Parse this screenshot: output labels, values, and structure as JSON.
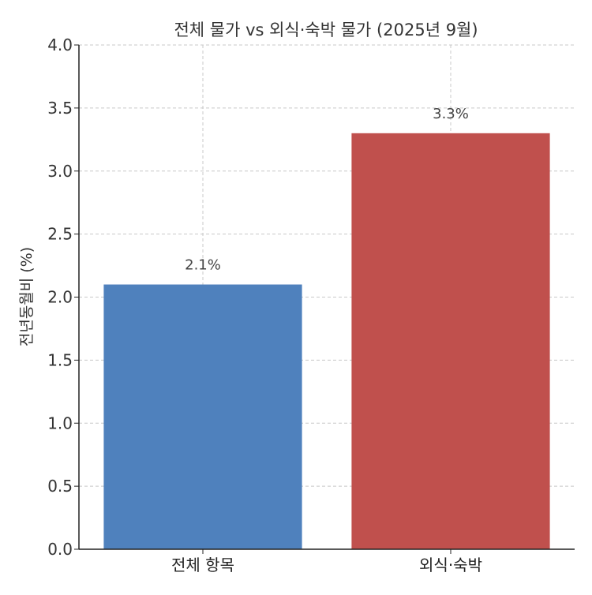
{
  "chart_data": {
    "type": "bar",
    "title": "전체 물가 vs 외식·숙박 물가 (2025년 9월)",
    "xlabel": "",
    "ylabel": "전년동월비 (%)",
    "categories": [
      "전체 항목",
      "외식·숙박"
    ],
    "values": [
      2.1,
      3.3
    ],
    "data_labels": [
      "2.1%",
      "3.3%"
    ],
    "colors": [
      "#4f81bd",
      "#c0504d"
    ],
    "ylim": [
      0,
      4.0
    ],
    "yticks": [
      "0.0",
      "0.5",
      "1.0",
      "1.5",
      "2.0",
      "2.5",
      "3.0",
      "3.5",
      "4.0"
    ],
    "grid": true,
    "legend": "none"
  }
}
